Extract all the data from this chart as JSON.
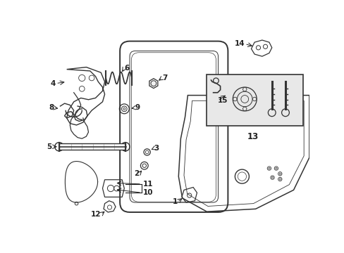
{
  "bg_color": "#ffffff",
  "line_color": "#333333",
  "text_color": "#222222",
  "fig_width": 4.89,
  "fig_height": 3.6,
  "dpi": 100
}
